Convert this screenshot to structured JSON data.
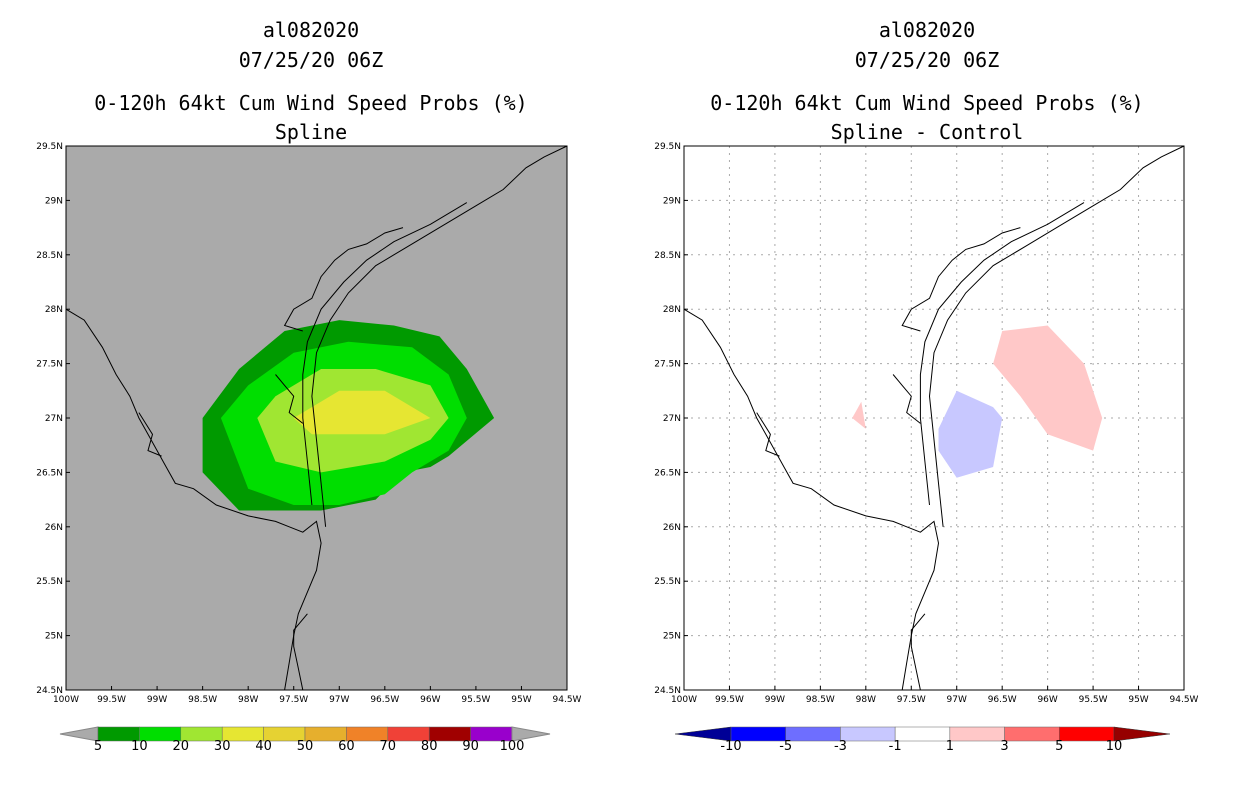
{
  "panels": [
    {
      "storm_id": "al082020",
      "datetime": "07/25/20 06Z",
      "product": "0-120h 64kt Cum Wind Speed Probs (%)",
      "subtitle": "Spline",
      "background": "#aaaaaa",
      "grid": false
    },
    {
      "storm_id": "al082020",
      "datetime": "07/25/20 06Z",
      "product": "0-120h 64kt Cum Wind Speed Probs (%)",
      "subtitle": "Spline - Control",
      "background": "#ffffff",
      "grid": true
    }
  ],
  "chart_data": [
    {
      "type": "heatmap",
      "title": "0-120h 64kt Cum Wind Speed Probs (%) Spline",
      "x_ticks": [
        "100W",
        "99.5W",
        "99W",
        "98.5W",
        "98W",
        "97.5W",
        "97W",
        "96.5W",
        "96W",
        "95.5W",
        "95W",
        "94.5W"
      ],
      "y_ticks": [
        "24.5N",
        "25N",
        "25.5N",
        "26N",
        "26.5N",
        "27N",
        "27.5N",
        "28N",
        "28.5N",
        "29N",
        "29.5N"
      ],
      "xlim": [
        -100,
        -94.5
      ],
      "ylim": [
        24.5,
        29.5
      ],
      "contours": [
        {
          "level": 5,
          "color": "#009a00",
          "points": [
            [
              -98.1,
              26.15
            ],
            [
              -97.6,
              26.15
            ],
            [
              -97.2,
              26.15
            ],
            [
              -96.6,
              26.25
            ],
            [
              -96.3,
              26.5
            ],
            [
              -96.0,
              26.55
            ],
            [
              -95.8,
              26.65
            ],
            [
              -95.3,
              27.0
            ],
            [
              -95.6,
              27.45
            ],
            [
              -95.9,
              27.75
            ],
            [
              -96.4,
              27.85
            ],
            [
              -97.0,
              27.9
            ],
            [
              -97.6,
              27.8
            ],
            [
              -98.1,
              27.45
            ],
            [
              -98.5,
              27.0
            ],
            [
              -98.5,
              26.5
            ]
          ]
        },
        {
          "level": 10,
          "color": "#00de00",
          "points": [
            [
              -98.0,
              26.35
            ],
            [
              -97.5,
              26.2
            ],
            [
              -97.0,
              26.2
            ],
            [
              -96.5,
              26.3
            ],
            [
              -96.2,
              26.5
            ],
            [
              -95.8,
              26.7
            ],
            [
              -95.6,
              27.0
            ],
            [
              -95.8,
              27.4
            ],
            [
              -96.2,
              27.65
            ],
            [
              -96.9,
              27.7
            ],
            [
              -97.5,
              27.6
            ],
            [
              -98.0,
              27.3
            ],
            [
              -98.3,
              27.0
            ]
          ]
        },
        {
          "level": 20,
          "color": "#a0e632",
          "points": [
            [
              -97.7,
              26.6
            ],
            [
              -97.2,
              26.5
            ],
            [
              -96.5,
              26.6
            ],
            [
              -96.0,
              26.8
            ],
            [
              -95.8,
              27.0
            ],
            [
              -96.0,
              27.3
            ],
            [
              -96.6,
              27.45
            ],
            [
              -97.2,
              27.45
            ],
            [
              -97.7,
              27.2
            ],
            [
              -97.9,
              27.0
            ]
          ]
        },
        {
          "level": 30,
          "color": "#e6e632",
          "points": [
            [
              -97.3,
              26.85
            ],
            [
              -96.5,
              26.85
            ],
            [
              -96.0,
              27.0
            ],
            [
              -96.5,
              27.25
            ],
            [
              -97.0,
              27.25
            ],
            [
              -97.3,
              27.1
            ],
            [
              -97.5,
              27.0
            ]
          ]
        }
      ],
      "colorbar": {
        "levels": [
          "5",
          "10",
          "20",
          "30",
          "40",
          "50",
          "60",
          "70",
          "80",
          "90",
          "100"
        ],
        "colors": [
          "#009a00",
          "#00de00",
          "#a0e632",
          "#e6e632",
          "#e6d232",
          "#e6af2d",
          "#f08228",
          "#f04137",
          "#a00000",
          "#9900cc"
        ]
      }
    },
    {
      "type": "heatmap",
      "title": "0-120h 64kt Cum Wind Speed Probs (%) Spline - Control",
      "x_ticks": [
        "100W",
        "99.5W",
        "99W",
        "98.5W",
        "98W",
        "97.5W",
        "97W",
        "96.5W",
        "96W",
        "95.5W",
        "95W",
        "94.5W"
      ],
      "y_ticks": [
        "24.5N",
        "25N",
        "25.5N",
        "26N",
        "26.5N",
        "27N",
        "27.5N",
        "28N",
        "28.5N",
        "29N",
        "29.5N"
      ],
      "xlim": [
        -100,
        -94.5
      ],
      "ylim": [
        24.5,
        29.5
      ],
      "contours": [
        {
          "level": 1,
          "color": "#ffc8c8",
          "points": [
            [
              -96.6,
              27.5
            ],
            [
              -96.5,
              27.8
            ],
            [
              -96.0,
              27.85
            ],
            [
              -95.6,
              27.5
            ],
            [
              -95.4,
              27.0
            ],
            [
              -95.5,
              26.7
            ],
            [
              -96.0,
              26.85
            ],
            [
              -96.3,
              27.2
            ]
          ]
        },
        {
          "level": 1,
          "color": "#ffc8c8",
          "points": [
            [
              -98.15,
              27.0
            ],
            [
              -98.05,
              27.15
            ],
            [
              -98.0,
              26.9
            ]
          ]
        },
        {
          "level": -1,
          "color": "#c8c8ff",
          "points": [
            [
              -97.2,
              26.9
            ],
            [
              -97.2,
              26.7
            ],
            [
              -97.0,
              26.45
            ],
            [
              -96.6,
              26.55
            ],
            [
              -96.5,
              27.0
            ],
            [
              -96.6,
              27.1
            ],
            [
              -97.0,
              27.25
            ]
          ]
        }
      ],
      "colorbar": {
        "levels": [
          "-10",
          "-5",
          "-3",
          "-1",
          "1",
          "3",
          "5",
          "10"
        ],
        "colors": [
          "#000096",
          "#0000ff",
          "#6e6eff",
          "#c8c8ff",
          "#ffffff",
          "#ffc8c8",
          "#ff6e6e",
          "#ff0000",
          "#960000"
        ]
      }
    }
  ]
}
